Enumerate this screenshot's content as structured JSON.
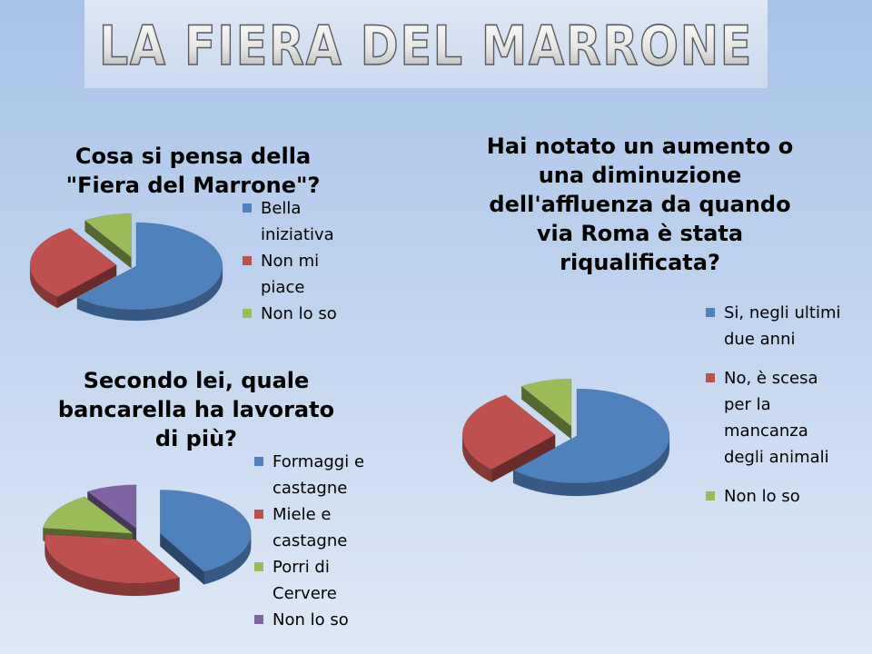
{
  "page_title": "LA FIERA DEL MARRONE",
  "colors": {
    "blue": "#4f81bd",
    "red": "#c0504d",
    "green": "#9bbb59",
    "purple": "#8064a2"
  },
  "chart_data": [
    {
      "type": "pie",
      "title": "Cosa si pensa della \"Fiera del Marrone\"?",
      "categories": [
        "Bella iniziativa",
        "Non mi piace",
        "Non lo so"
      ],
      "values": [
        62,
        29,
        9
      ],
      "legend": "right"
    },
    {
      "type": "pie",
      "title": "Hai notato un aumento o una diminuzione dell'affluenza da quando via Roma è stata riqualificata?",
      "categories": [
        "Si, negli ultimi due anni",
        "No, è scesa per la mancanza degli animali",
        "Non lo so"
      ],
      "values": [
        62,
        29,
        9
      ],
      "legend": "right"
    },
    {
      "type": "pie",
      "title": "Secondo lei, quale bancarella ha lavorato di più?",
      "categories": [
        "Formaggi e castagne",
        "Miele e castagne",
        "Porri di Cervere",
        "Non lo so"
      ],
      "values": [
        42,
        35,
        14,
        9
      ],
      "legend": "right"
    }
  ]
}
